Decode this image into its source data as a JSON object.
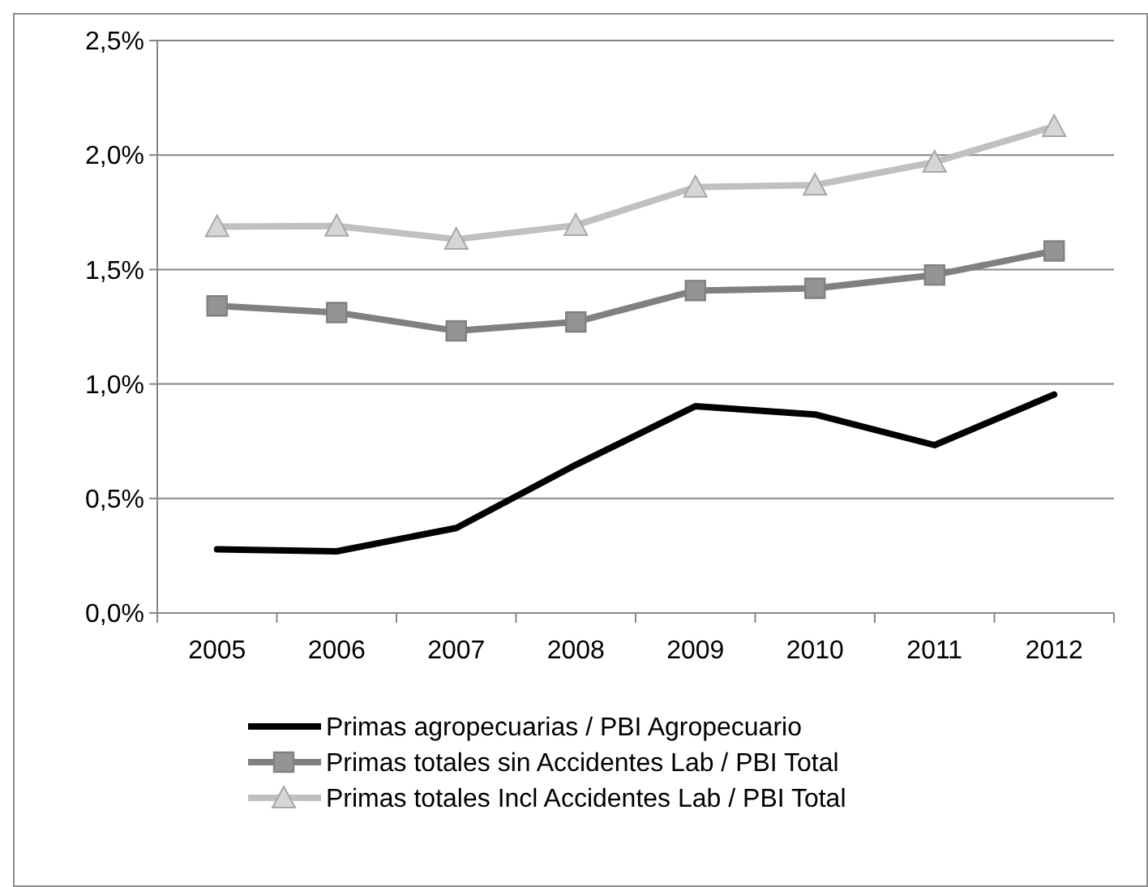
{
  "chart_data": {
    "type": "line",
    "categories": [
      "2005",
      "2006",
      "2007",
      "2008",
      "2009",
      "2010",
      "2011",
      "2012"
    ],
    "series": [
      {
        "name": "Primas agropecuarias / PBI Agropecuario",
        "color": "#000000",
        "marker": "none",
        "values": [
          0.278,
          0.269,
          0.371,
          0.647,
          0.903,
          0.867,
          0.733,
          0.954
        ]
      },
      {
        "name": "Primas totales sin Accidentes Lab / PBI Total",
        "color": "#808080",
        "marker": "square",
        "values": [
          1.341,
          1.312,
          1.232,
          1.271,
          1.408,
          1.418,
          1.476,
          1.581
        ]
      },
      {
        "name": "Primas totales Incl Accidentes Lab / PBI Total",
        "color": "#c0c0c0",
        "marker": "triangle",
        "values": [
          1.687,
          1.69,
          1.632,
          1.693,
          1.86,
          1.869,
          1.969,
          2.125
        ]
      }
    ],
    "ylim": [
      0,
      2.5
    ],
    "yticks": [
      {
        "value": 0,
        "label": "0,0%"
      },
      {
        "value": 0.5,
        "label": "0,5%"
      },
      {
        "value": 1,
        "label": "1,0%"
      },
      {
        "value": 1.5,
        "label": "1,5%"
      },
      {
        "value": 2,
        "label": "2,0%"
      },
      {
        "value": 2.5,
        "label": "2,5%"
      }
    ],
    "grid": "y",
    "legend": "bottom",
    "line_style": "solid"
  }
}
